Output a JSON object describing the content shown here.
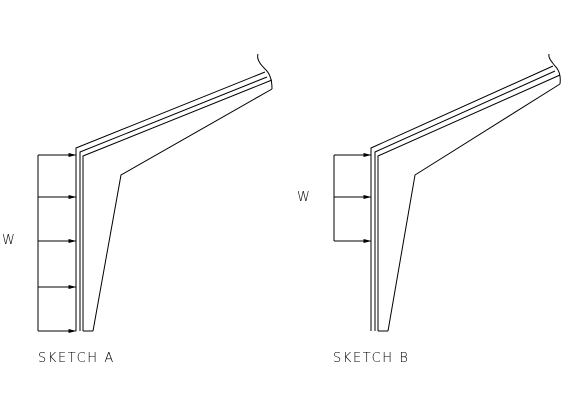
{
  "sketches": [
    {
      "id": "a",
      "label": "SKETCH A",
      "load_label": "W",
      "arrow_count": 5
    },
    {
      "id": "b",
      "label": "SKETCH B",
      "load_label": "W",
      "arrow_count": 3
    }
  ]
}
